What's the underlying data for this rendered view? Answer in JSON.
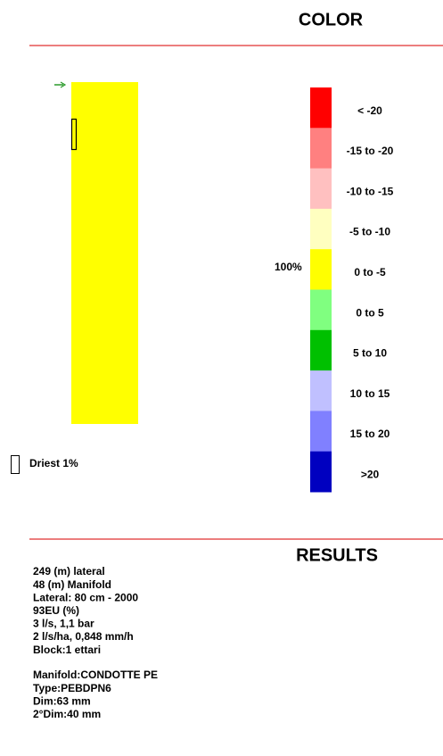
{
  "color_section": {
    "title": "COLOR",
    "legend": [
      {
        "label": "< -20",
        "color": "#ff0000"
      },
      {
        "label": "-15 to -20",
        "color": "#ff8080"
      },
      {
        "label": "-10 to -15",
        "color": "#ffc0c0"
      },
      {
        "label": "-5 to -10",
        "color": "#ffffc0"
      },
      {
        "label": "0 to -5",
        "color": "#ffff00"
      },
      {
        "label": "0 to 5",
        "color": "#80ff80"
      },
      {
        "label": "5 to 10",
        "color": "#00c000"
      },
      {
        "label": "10 to 15",
        "color": "#c0c0ff"
      },
      {
        "label": "15 to 20",
        "color": "#8080ff"
      },
      {
        "label": ">20",
        "color": "#0000c0"
      }
    ],
    "share_label": "100%",
    "driest_label": "Driest 1%"
  },
  "results_section": {
    "title": "RESULTS",
    "lines": [
      "249 (m) lateral",
      "48 (m) Manifold",
      "Lateral: 80 cm - 2000",
      "93EU (%)",
      "3 l/s, 1,1 bar",
      "2 l/s/ha, 0,848 mm/h",
      "Block:1 ettari"
    ],
    "manifold_lines": [
      "Manifold:CONDOTTE PE",
      "Type:PEBDPN6",
      "Dim:63 mm",
      "2°Dim:40 mm"
    ]
  }
}
